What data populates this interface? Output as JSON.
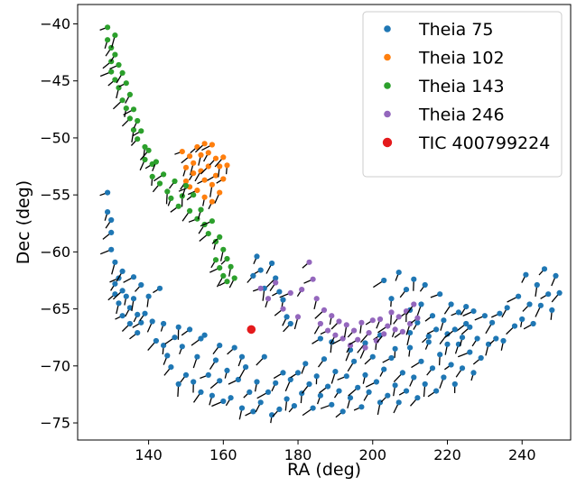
{
  "chart_data": {
    "type": "scatter",
    "xlabel": "RA (deg)",
    "ylabel": "Dec (deg)",
    "xlim": [
      121.0,
      253.0
    ],
    "ylim": [
      -76.5,
      -38.3
    ],
    "xticks": [
      140,
      160,
      180,
      200,
      220,
      240
    ],
    "yticks": [
      -40,
      -45,
      -50,
      -55,
      -60,
      -65,
      -70,
      -75
    ],
    "tick_labels_x": [
      "140",
      "160",
      "180",
      "200",
      "220",
      "240"
    ],
    "tick_labels_y": [
      "−40",
      "−45",
      "−50",
      "−55",
      "−60",
      "−65",
      "−70",
      "−75"
    ],
    "grid": false,
    "legend_position": "top-right",
    "vector_markers": "black proper-motion arrows on each star",
    "series": [
      {
        "name": "Theia 75",
        "color": "#1f77b4",
        "points": [
          [
            129,
            -54.8
          ],
          [
            129,
            -56.5
          ],
          [
            130,
            -57.2
          ],
          [
            130,
            -58.3
          ],
          [
            130,
            -59.8
          ],
          [
            131,
            -60.9
          ],
          [
            131,
            -62.8
          ],
          [
            131,
            -63.7
          ],
          [
            132,
            -62.3
          ],
          [
            132,
            -64.5
          ],
          [
            133,
            -61.7
          ],
          [
            133,
            -63.4
          ],
          [
            133,
            -65.6
          ],
          [
            134,
            -63.9
          ],
          [
            135,
            -64.9
          ],
          [
            135,
            -66.3
          ],
          [
            136,
            -62.2
          ],
          [
            136,
            -64.1
          ],
          [
            137,
            -65.5
          ],
          [
            138,
            -62.9
          ],
          [
            138,
            -66.2
          ],
          [
            140,
            -63.9
          ],
          [
            141,
            -66.1
          ],
          [
            142,
            -67.8
          ],
          [
            143,
            -63.2
          ],
          [
            144,
            -68.2
          ],
          [
            145,
            -69.1
          ],
          [
            146,
            -70.1
          ],
          [
            147,
            -67.5
          ],
          [
            148,
            -71.6
          ],
          [
            149,
            -68.3
          ],
          [
            150,
            -70.8
          ],
          [
            151,
            -66.8
          ],
          [
            152,
            -71.4
          ],
          [
            153,
            -69.2
          ],
          [
            154,
            -72.3
          ],
          [
            155,
            -67.3
          ],
          [
            156,
            -70.8
          ],
          [
            157,
            -72.6
          ],
          [
            158,
            -69.5
          ],
          [
            159,
            -71.3
          ],
          [
            160,
            -73.1
          ],
          [
            161,
            -70.4
          ],
          [
            162,
            -72.8
          ],
          [
            163,
            -68.4
          ],
          [
            164,
            -71.2
          ],
          [
            165,
            -73.7
          ],
          [
            166,
            -70.1
          ],
          [
            167,
            -72.3
          ],
          [
            168,
            -74.0
          ],
          [
            169,
            -71.4
          ],
          [
            170,
            -73.2
          ],
          [
            171,
            -69.2
          ],
          [
            172,
            -72.3
          ],
          [
            173,
            -74.3
          ],
          [
            174,
            -71.5
          ],
          [
            175,
            -73.8
          ],
          [
            176,
            -70.6
          ],
          [
            177,
            -72.9
          ],
          [
            178,
            -71.2
          ],
          [
            179,
            -73.5
          ],
          [
            180,
            -70.6
          ],
          [
            181,
            -72.4
          ],
          [
            182,
            -69.8
          ],
          [
            183,
            -71.6
          ],
          [
            184,
            -73.7
          ],
          [
            185,
            -70.9
          ],
          [
            186,
            -72.6
          ],
          [
            187,
            -69.4
          ],
          [
            188,
            -71.8
          ],
          [
            189,
            -73.4
          ],
          [
            190,
            -70.5
          ],
          [
            191,
            -72.2
          ],
          [
            192,
            -74.0
          ],
          [
            193,
            -70.9
          ],
          [
            194,
            -72.8
          ],
          [
            195,
            -69.6
          ],
          [
            196,
            -71.9
          ],
          [
            197,
            -73.6
          ],
          [
            198,
            -70.8
          ],
          [
            199,
            -72.3
          ],
          [
            200,
            -69.2
          ],
          [
            201,
            -71.4
          ],
          [
            202,
            -73.2
          ],
          [
            203,
            -70.3
          ],
          [
            204,
            -72.6
          ],
          [
            205,
            -69.3
          ],
          [
            206,
            -71.7
          ],
          [
            207,
            -73.2
          ],
          [
            208,
            -70.6
          ],
          [
            209,
            -72.2
          ],
          [
            210,
            -68.4
          ],
          [
            211,
            -71.0
          ],
          [
            212,
            -72.8
          ],
          [
            213,
            -69.6
          ],
          [
            214,
            -71.6
          ],
          [
            215,
            -67.9
          ],
          [
            216,
            -70.2
          ],
          [
            217,
            -72.2
          ],
          [
            218,
            -69.0
          ],
          [
            219,
            -71.0
          ],
          [
            220,
            -67.2
          ],
          [
            221,
            -69.9
          ],
          [
            222,
            -71.6
          ],
          [
            223,
            -68.1
          ],
          [
            224,
            -70.2
          ],
          [
            225,
            -66.3
          ],
          [
            226,
            -68.8
          ],
          [
            227,
            -70.6
          ],
          [
            228,
            -67.6
          ],
          [
            229,
            -69.3
          ],
          [
            230,
            -65.6
          ],
          [
            231,
            -68.1
          ],
          [
            232,
            -66.2
          ],
          [
            233,
            -67.6
          ],
          [
            234,
            -65.4
          ],
          [
            235,
            -67.8
          ],
          [
            236,
            -64.9
          ],
          [
            238,
            -66.5
          ],
          [
            239,
            -63.9
          ],
          [
            240,
            -65.9
          ],
          [
            241,
            -62.0
          ],
          [
            242,
            -64.6
          ],
          [
            243,
            -66.3
          ],
          [
            244,
            -62.9
          ],
          [
            245,
            -64.7
          ],
          [
            246,
            -61.5
          ],
          [
            247,
            -63.7
          ],
          [
            248,
            -65.1
          ],
          [
            249,
            -62.1
          ],
          [
            250,
            -63.6
          ],
          [
            203,
            -62.5
          ],
          [
            205,
            -64.1
          ],
          [
            207,
            -61.8
          ],
          [
            209,
            -63.3
          ],
          [
            210,
            -65.1
          ],
          [
            211,
            -62.4
          ],
          [
            213,
            -64.6
          ],
          [
            214,
            -62.9
          ],
          [
            216,
            -65.6
          ],
          [
            218,
            -63.7
          ],
          [
            219,
            -66.0
          ],
          [
            221,
            -64.6
          ],
          [
            222,
            -66.8
          ],
          [
            223,
            -65.3
          ],
          [
            224,
            -67.5
          ],
          [
            225,
            -64.8
          ],
          [
            226,
            -66.6
          ],
          [
            227,
            -65.2
          ],
          [
            210,
            -67.1
          ],
          [
            212,
            -66.2
          ],
          [
            215,
            -67.4
          ],
          [
            217,
            -66.8
          ],
          [
            220,
            -68.1
          ],
          [
            173,
            -61.0
          ],
          [
            174,
            -62.3
          ],
          [
            175,
            -63.5
          ],
          [
            176,
            -64.2
          ],
          [
            177,
            -65.7
          ],
          [
            178,
            -66.3
          ],
          [
            170,
            -61.6
          ],
          [
            171,
            -63.2
          ],
          [
            169,
            -60.4
          ],
          [
            168,
            -62.1
          ],
          [
            186,
            -67.6
          ],
          [
            189,
            -67.9
          ],
          [
            194,
            -68.6
          ],
          [
            198,
            -68.0
          ],
          [
            202,
            -67.3
          ],
          [
            206,
            -68.5
          ],
          [
            165,
            -69.2
          ],
          [
            159,
            -68.2
          ],
          [
            154,
            -67.6
          ],
          [
            148,
            -66.6
          ],
          [
            144,
            -66.3
          ],
          [
            139,
            -65.4
          ],
          [
            137,
            -67.1
          ]
        ]
      },
      {
        "name": "Theia 102",
        "color": "#ff7f0e",
        "points": [
          [
            149,
            -51.2
          ],
          [
            150,
            -52.6
          ],
          [
            150,
            -53.8
          ],
          [
            151,
            -51.6
          ],
          [
            151,
            -54.3
          ],
          [
            152,
            -52.2
          ],
          [
            152,
            -53.1
          ],
          [
            153,
            -50.8
          ],
          [
            153,
            -54.6
          ],
          [
            154,
            -51.5
          ],
          [
            154,
            -52.9
          ],
          [
            155,
            -50.5
          ],
          [
            155,
            -53.7
          ],
          [
            155,
            -55.2
          ],
          [
            156,
            -51.3
          ],
          [
            156,
            -52.5
          ],
          [
            157,
            -50.6
          ],
          [
            157,
            -54.1
          ],
          [
            157,
            -55.6
          ],
          [
            158,
            -51.8
          ],
          [
            158,
            -53.3
          ],
          [
            159,
            -52.5
          ],
          [
            159,
            -54.8
          ],
          [
            160,
            -51.7
          ],
          [
            160,
            -53.6
          ],
          [
            161,
            -52.4
          ]
        ]
      },
      {
        "name": "Theia 143",
        "color": "#2ca02c",
        "points": [
          [
            129,
            -40.3
          ],
          [
            129,
            -41.4
          ],
          [
            130,
            -42.1
          ],
          [
            130,
            -43.3
          ],
          [
            130,
            -44.2
          ],
          [
            131,
            -41.0
          ],
          [
            131,
            -42.7
          ],
          [
            131,
            -44.9
          ],
          [
            132,
            -43.6
          ],
          [
            132,
            -45.6
          ],
          [
            133,
            -44.3
          ],
          [
            133,
            -46.7
          ],
          [
            134,
            -45.2
          ],
          [
            134,
            -47.4
          ],
          [
            135,
            -46.2
          ],
          [
            135,
            -48.3
          ],
          [
            136,
            -47.5
          ],
          [
            136,
            -49.3
          ],
          [
            137,
            -48.5
          ],
          [
            137,
            -50.1
          ],
          [
            138,
            -49.4
          ],
          [
            139,
            -50.8
          ],
          [
            139,
            -51.9
          ],
          [
            140,
            -51.1
          ],
          [
            141,
            -52.3
          ],
          [
            141,
            -53.4
          ],
          [
            142,
            -52.1
          ],
          [
            143,
            -54.0
          ],
          [
            144,
            -53.2
          ],
          [
            145,
            -54.7
          ],
          [
            146,
            -55.3
          ],
          [
            147,
            -53.8
          ],
          [
            148,
            -56.0
          ],
          [
            149,
            -55.1
          ],
          [
            150,
            -54.2
          ],
          [
            151,
            -56.4
          ],
          [
            152,
            -55.0
          ],
          [
            153,
            -57.1
          ],
          [
            154,
            -56.3
          ],
          [
            155,
            -57.6
          ],
          [
            156,
            -58.4
          ],
          [
            157,
            -57.3
          ],
          [
            158,
            -59.1
          ],
          [
            158,
            -60.7
          ],
          [
            159,
            -58.7
          ],
          [
            159,
            -61.4
          ],
          [
            160,
            -59.8
          ],
          [
            160,
            -62.1
          ],
          [
            161,
            -60.6
          ],
          [
            161,
            -62.6
          ],
          [
            162,
            -61.3
          ],
          [
            163,
            -62.3
          ]
        ]
      },
      {
        "name": "Theia 246",
        "color": "#9467bd",
        "points": [
          [
            170,
            -63.2
          ],
          [
            172,
            -64.1
          ],
          [
            174,
            -62.7
          ],
          [
            176,
            -65.0
          ],
          [
            178,
            -63.6
          ],
          [
            180,
            -65.7
          ],
          [
            181,
            -63.3
          ],
          [
            183,
            -60.9
          ],
          [
            184,
            -62.4
          ],
          [
            185,
            -64.1
          ],
          [
            186,
            -66.3
          ],
          [
            187,
            -65.1
          ],
          [
            188,
            -66.9
          ],
          [
            189,
            -65.6
          ],
          [
            190,
            -67.3
          ],
          [
            191,
            -66.1
          ],
          [
            192,
            -67.6
          ],
          [
            193,
            -66.4
          ],
          [
            194,
            -68.2
          ],
          [
            195,
            -66.9
          ],
          [
            196,
            -67.7
          ],
          [
            197,
            -66.2
          ],
          [
            198,
            -68.4
          ],
          [
            199,
            -67.1
          ],
          [
            200,
            -66.0
          ],
          [
            201,
            -67.8
          ],
          [
            202,
            -65.9
          ],
          [
            203,
            -67.2
          ],
          [
            204,
            -66.5
          ],
          [
            205,
            -65.3
          ],
          [
            206,
            -66.8
          ],
          [
            207,
            -65.7
          ],
          [
            208,
            -67.0
          ],
          [
            209,
            -65.2
          ],
          [
            210,
            -66.3
          ],
          [
            211,
            -64.6
          ],
          [
            212,
            -65.8
          ]
        ]
      },
      {
        "name": "TIC 400799224",
        "color": "#e41a1c",
        "points": [
          [
            167.5,
            -66.8
          ]
        ]
      }
    ]
  }
}
